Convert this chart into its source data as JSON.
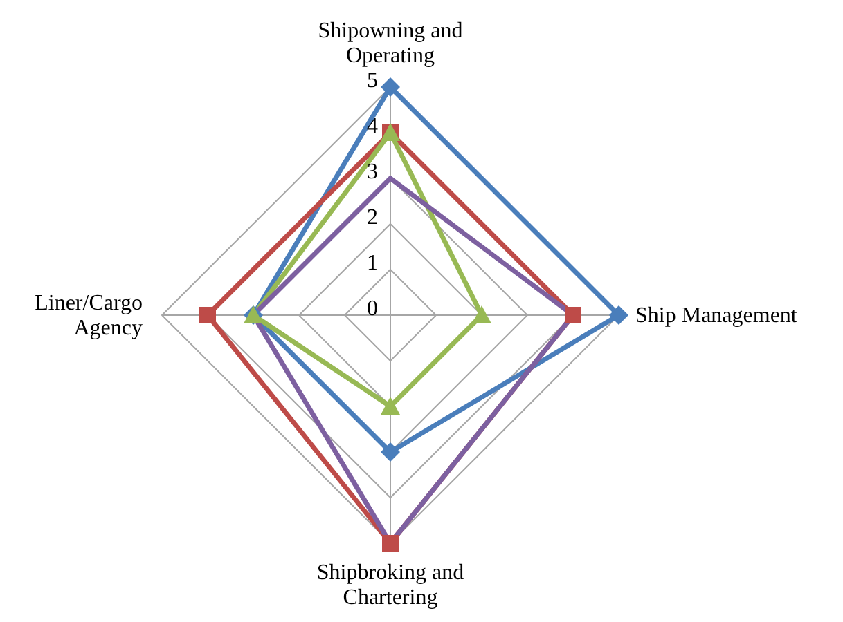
{
  "chart_data": {
    "type": "radar",
    "categories": [
      "Shipowning and Operating",
      "Ship Management",
      "Shipbroking and Chartering",
      "Liner/Cargo Agency"
    ],
    "series": [
      {
        "color": "#4a7ebb",
        "values": [
          5,
          5,
          3,
          3
        ],
        "marker": "diamond"
      },
      {
        "color": "#be4b48",
        "values": [
          4,
          4,
          5,
          4
        ],
        "marker": "square"
      },
      {
        "color": "#98b954",
        "values": [
          4,
          2,
          2,
          3
        ],
        "marker": "triangle"
      },
      {
        "color": "#7d60a0",
        "values": [
          3,
          4,
          5,
          3
        ],
        "marker": "none"
      }
    ],
    "ylim": [
      0,
      5
    ],
    "yticks": [
      0,
      1,
      2,
      3,
      4,
      5
    ],
    "grid": true,
    "legend": false
  }
}
